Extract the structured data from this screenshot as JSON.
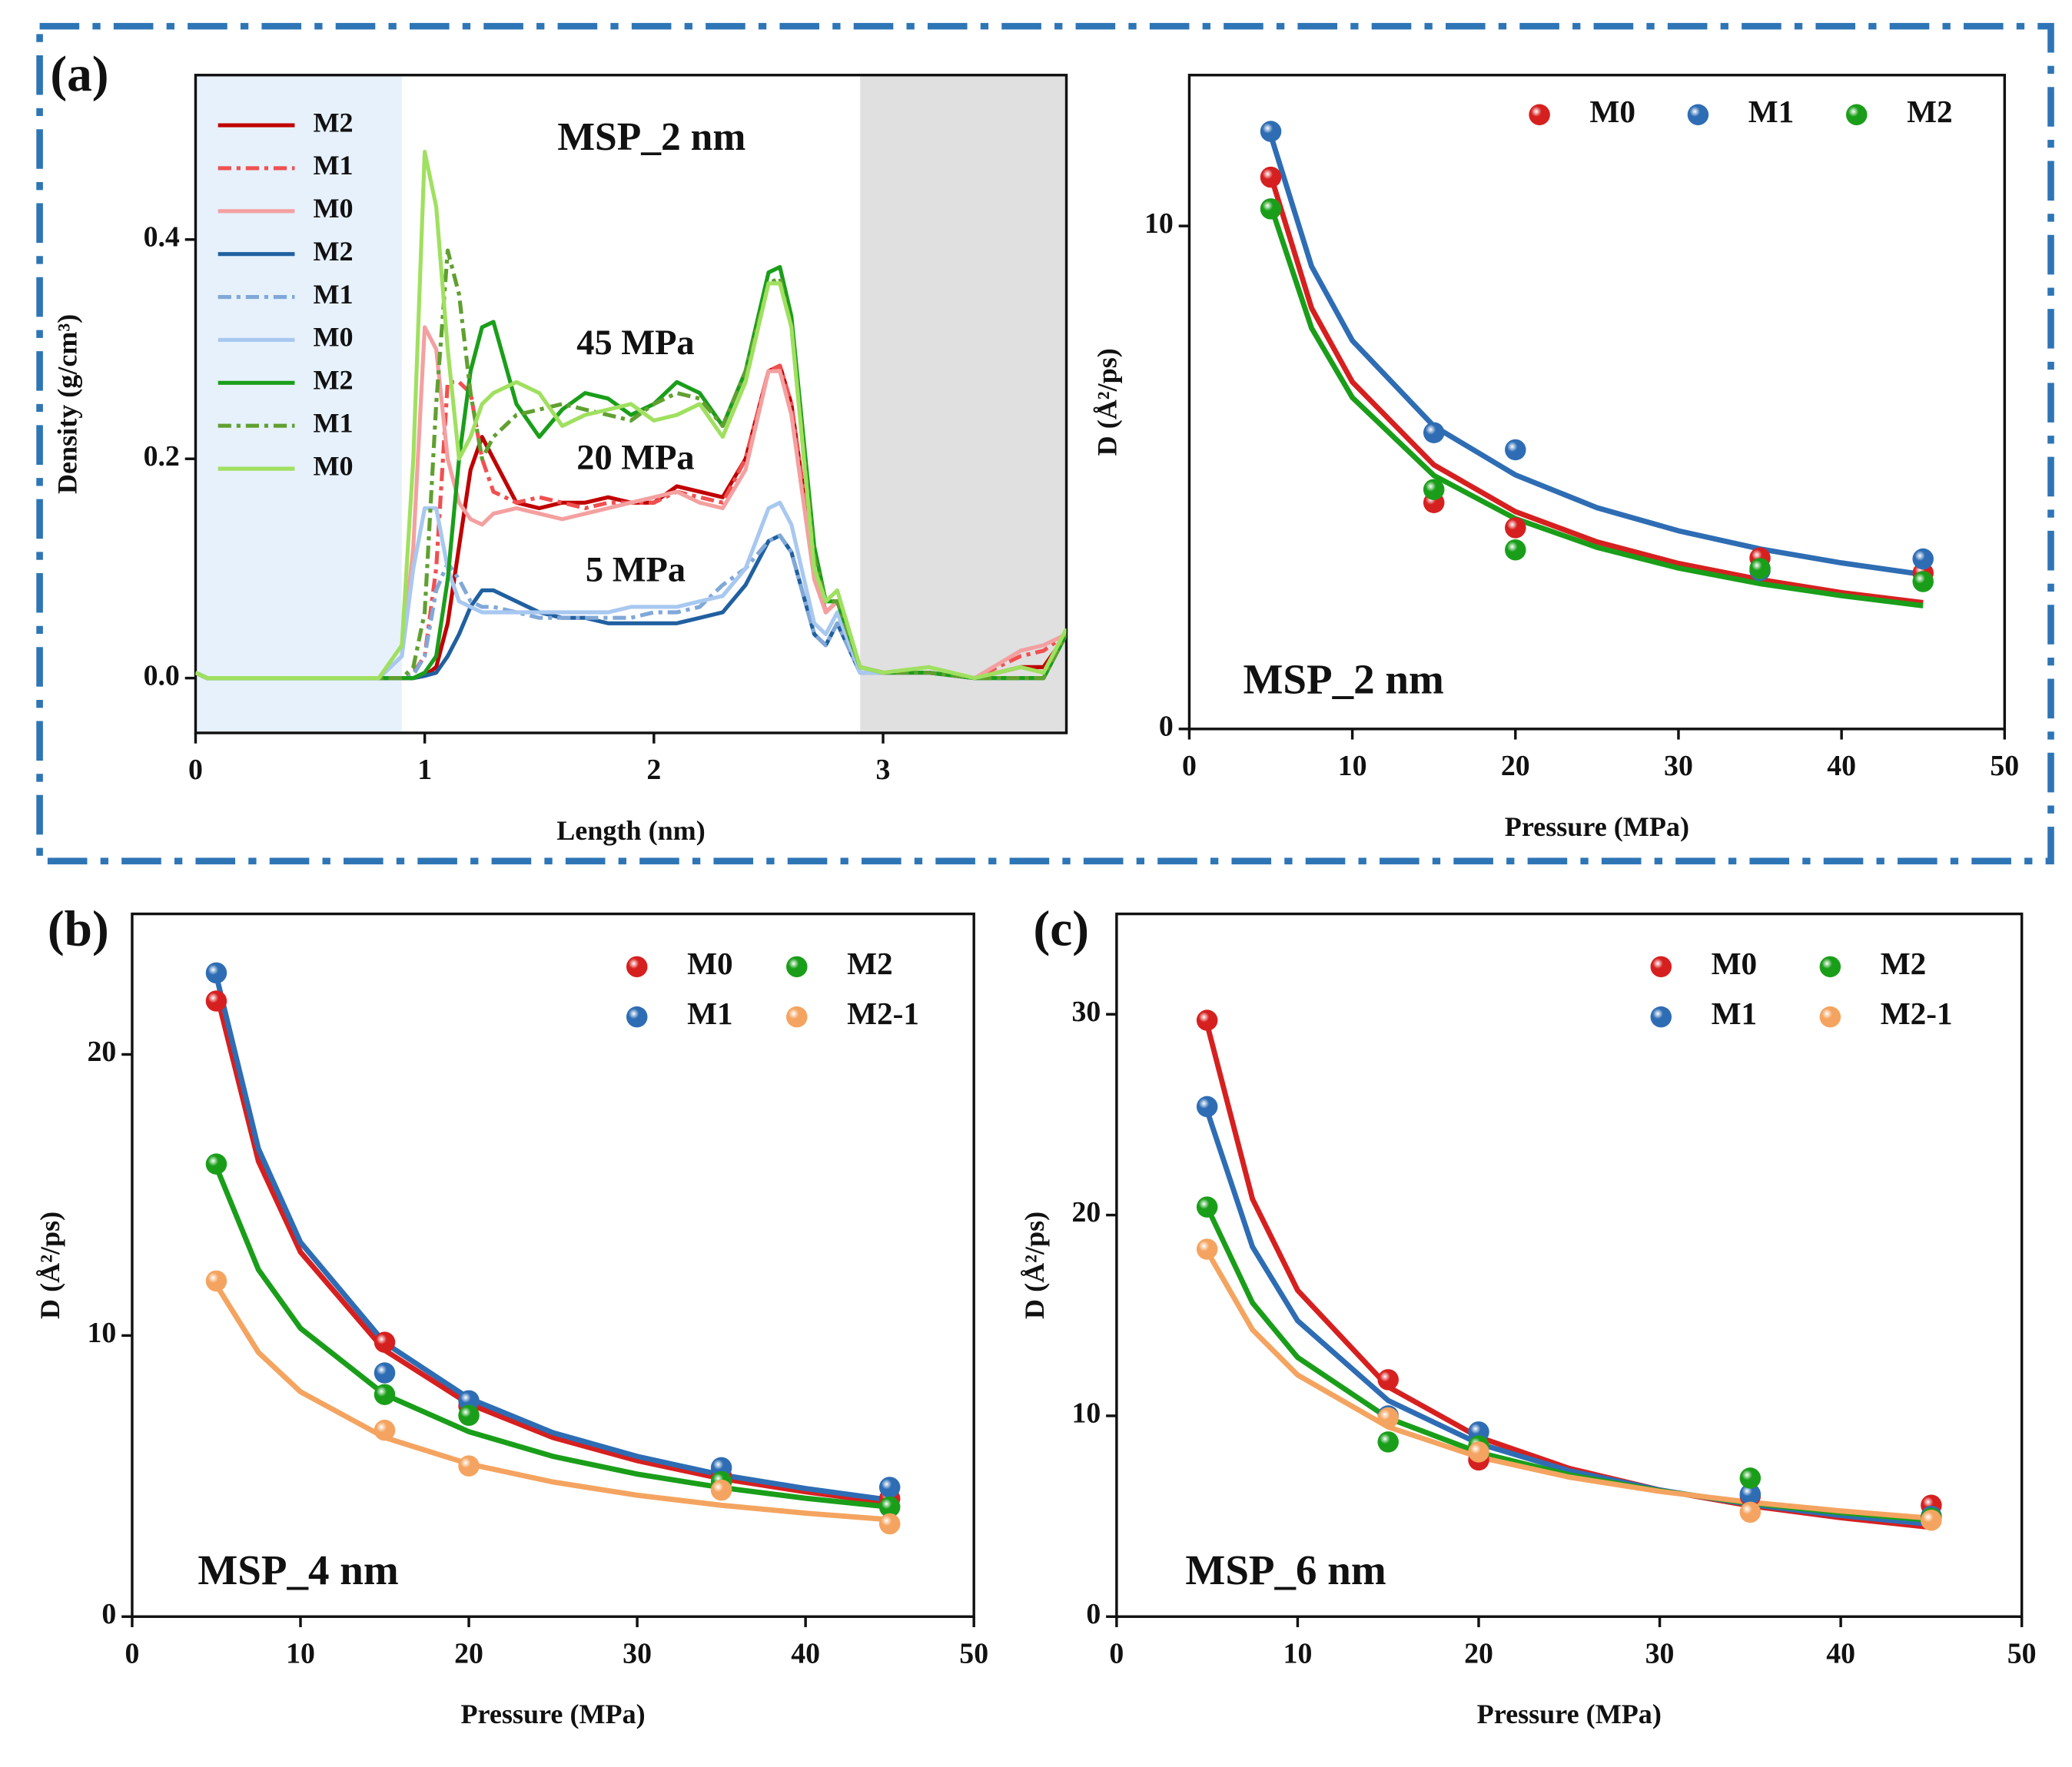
{
  "chart_data": [
    {
      "type": "line",
      "panel_label": "(a)",
      "xlabel": "Length (nm)",
      "ylabel": "Density (g/cm³)",
      "xlim": [
        0,
        3.8
      ],
      "ylim": [
        -0.05,
        0.55
      ],
      "xticks": [
        0,
        1,
        2,
        3
      ],
      "yticks": [
        {
          "value": 0,
          "label": "0.0"
        },
        0.2,
        0.4
      ],
      "regions": [
        {
          "range": [
            0,
            0.9
          ],
          "color": "#e6f1fc"
        },
        {
          "range": [
            2.9,
            3.8
          ],
          "color": "#e0e0e0"
        }
      ],
      "legend": "upper left",
      "annotations": [
        {
          "text": "MSP_2 nm",
          "x": 1.99,
          "y": 0.49,
          "color": "#111111"
        },
        {
          "text": "45 MPa",
          "x": 1.92,
          "y": 0.303,
          "color": "#5a8a30"
        },
        {
          "text": "20 MPa",
          "x": 1.92,
          "y": 0.198,
          "color": "#e02020"
        },
        {
          "text": "5 MPa",
          "x": 1.92,
          "y": 0.096,
          "color": "#2e75b6"
        }
      ],
      "x": [
        0,
        0.05,
        0.8,
        0.9,
        0.95,
        1.0,
        1.05,
        1.1,
        1.15,
        1.2,
        1.25,
        1.3,
        1.4,
        1.5,
        1.6,
        1.7,
        1.8,
        1.9,
        2.0,
        2.1,
        2.2,
        2.3,
        2.4,
        2.5,
        2.55,
        2.6,
        2.7,
        2.75,
        2.8,
        2.9,
        3.0,
        3.2,
        3.4,
        3.6,
        3.7,
        3.8
      ],
      "series": [
        {
          "name": "M2",
          "color": "#c00000",
          "linestyle": "solid",
          "values": [
            0.005,
            0,
            0,
            0,
            0,
            0.002,
            0.01,
            0.05,
            0.12,
            0.19,
            0.22,
            0.2,
            0.16,
            0.155,
            0.16,
            0.16,
            0.165,
            0.16,
            0.16,
            0.175,
            0.17,
            0.165,
            0.2,
            0.28,
            0.285,
            0.25,
            0.1,
            0.06,
            0.07,
            0.01,
            0.005,
            0.005,
            0,
            0.01,
            0.01,
            0.04
          ]
        },
        {
          "name": "M1",
          "color": "#f05050",
          "linestyle": "dashdot",
          "values": [
            0.005,
            0,
            0,
            0,
            0.005,
            0.02,
            0.1,
            0.27,
            0.27,
            0.26,
            0.2,
            0.17,
            0.16,
            0.165,
            0.16,
            0.155,
            0.16,
            0.16,
            0.16,
            0.17,
            0.165,
            0.16,
            0.2,
            0.28,
            0.285,
            0.25,
            0.1,
            0.06,
            0.07,
            0.01,
            0.005,
            0.005,
            0,
            0.02,
            0.025,
            0.04
          ]
        },
        {
          "name": "M0",
          "color": "#f4a0a0",
          "linestyle": "solid",
          "values": [
            0.005,
            0,
            0,
            0.02,
            0.12,
            0.32,
            0.3,
            0.2,
            0.16,
            0.145,
            0.14,
            0.15,
            0.155,
            0.15,
            0.145,
            0.15,
            0.155,
            0.16,
            0.165,
            0.17,
            0.16,
            0.155,
            0.19,
            0.28,
            0.28,
            0.24,
            0.09,
            0.06,
            0.07,
            0.01,
            0.005,
            0.005,
            0,
            0.025,
            0.03,
            0.04
          ]
        },
        {
          "name": "M2",
          "color": "#2060a0",
          "linestyle": "solid",
          "values": [
            0.005,
            0,
            0,
            0,
            0,
            0.002,
            0.005,
            0.02,
            0.04,
            0.065,
            0.08,
            0.08,
            0.07,
            0.06,
            0.055,
            0.055,
            0.05,
            0.05,
            0.05,
            0.05,
            0.055,
            0.06,
            0.085,
            0.125,
            0.13,
            0.115,
            0.04,
            0.03,
            0.05,
            0.005,
            0.005,
            0.005,
            0,
            0,
            0,
            0.04
          ]
        },
        {
          "name": "M1",
          "color": "#80a8d8",
          "linestyle": "dashdot",
          "values": [
            0.005,
            0,
            0,
            0,
            0.003,
            0.02,
            0.08,
            0.105,
            0.09,
            0.07,
            0.065,
            0.065,
            0.06,
            0.055,
            0.055,
            0.055,
            0.055,
            0.055,
            0.06,
            0.06,
            0.065,
            0.085,
            0.1,
            0.125,
            0.13,
            0.115,
            0.04,
            0.03,
            0.05,
            0.005,
            0.005,
            0.005,
            0,
            0,
            0,
            0.04
          ]
        },
        {
          "name": "M0",
          "color": "#a8c8f0",
          "linestyle": "solid",
          "values": [
            0.005,
            0,
            0,
            0.02,
            0.1,
            0.155,
            0.155,
            0.1,
            0.07,
            0.065,
            0.06,
            0.06,
            0.06,
            0.06,
            0.06,
            0.06,
            0.06,
            0.065,
            0.065,
            0.065,
            0.07,
            0.075,
            0.1,
            0.155,
            0.16,
            0.14,
            0.05,
            0.04,
            0.06,
            0.005,
            0.005,
            0.005,
            0,
            0,
            0,
            0.04
          ]
        },
        {
          "name": "M2",
          "color": "#1a9e1a",
          "linestyle": "solid",
          "values": [
            0.005,
            0,
            0,
            0,
            0,
            0.005,
            0.02,
            0.09,
            0.2,
            0.28,
            0.32,
            0.325,
            0.25,
            0.22,
            0.245,
            0.26,
            0.255,
            0.24,
            0.25,
            0.27,
            0.26,
            0.23,
            0.28,
            0.37,
            0.375,
            0.33,
            0.12,
            0.07,
            0.07,
            0.01,
            0.005,
            0.005,
            0,
            0,
            0,
            0.04
          ]
        },
        {
          "name": "M1",
          "color": "#60a030",
          "linestyle": "dashdot",
          "values": [
            0.005,
            0,
            0,
            0,
            0.01,
            0.06,
            0.25,
            0.39,
            0.35,
            0.26,
            0.2,
            0.22,
            0.24,
            0.245,
            0.25,
            0.245,
            0.24,
            0.235,
            0.25,
            0.26,
            0.255,
            0.23,
            0.28,
            0.36,
            0.365,
            0.32,
            0.11,
            0.07,
            0.07,
            0.01,
            0.005,
            0.005,
            0,
            0,
            0,
            0.04
          ]
        },
        {
          "name": "M0",
          "color": "#a0e060",
          "linestyle": "solid",
          "values": [
            0.005,
            0,
            0,
            0.03,
            0.2,
            0.48,
            0.43,
            0.3,
            0.2,
            0.22,
            0.25,
            0.26,
            0.27,
            0.26,
            0.23,
            0.24,
            0.245,
            0.25,
            0.235,
            0.24,
            0.25,
            0.22,
            0.27,
            0.36,
            0.36,
            0.32,
            0.1,
            0.07,
            0.08,
            0.01,
            0.005,
            0.01,
            0,
            0.01,
            0.005,
            0.045
          ]
        }
      ]
    },
    {
      "type": "scatter",
      "xlabel": "Pressure (MPa)",
      "ylabel": "D (Å²/ps)",
      "xlim": [
        0,
        50
      ],
      "ylim": [
        0,
        13
      ],
      "xticks": [
        0,
        10,
        20,
        30,
        40,
        50
      ],
      "yticks": [
        0,
        10
      ],
      "legend": "upper right",
      "legend_columns": 3,
      "annotations": [
        {
          "text": "MSP_2 nm",
          "x": 3.3,
          "y": 0.9,
          "color": "#111111"
        }
      ],
      "x": [
        5,
        15,
        20,
        35,
        45
      ],
      "fit_x": [
        5,
        7.5,
        10,
        15,
        20,
        25,
        30,
        35,
        40,
        45
      ],
      "series": [
        {
          "name": "M0",
          "color": "#d62020",
          "values": [
            10.97,
            4.5,
            4.0,
            3.4,
            3.1
          ],
          "fit": [
            11.0,
            8.37,
            6.9,
            5.25,
            4.32,
            3.72,
            3.29,
            2.97,
            2.71,
            2.51
          ]
        },
        {
          "name": "M1",
          "color": "#2e6db4",
          "values": [
            11.88,
            5.89,
            5.55,
            3.15,
            3.38
          ],
          "fit": [
            11.8,
            9.2,
            7.72,
            6.02,
            5.05,
            4.4,
            3.94,
            3.58,
            3.3,
            3.07
          ]
        },
        {
          "name": "M2",
          "color": "#1a9e1a",
          "values": [
            10.34,
            4.76,
            3.56,
            3.19,
            2.93
          ],
          "fit": [
            10.4,
            7.97,
            6.59,
            5.04,
            4.18,
            3.61,
            3.2,
            2.89,
            2.65,
            2.45
          ]
        }
      ]
    },
    {
      "type": "scatter",
      "panel_label": "(b)",
      "xlabel": "Pressure (MPa)",
      "ylabel": "D (Å²/ps)",
      "xlim": [
        0,
        50
      ],
      "ylim": [
        0,
        25
      ],
      "xticks": [
        0,
        10,
        20,
        30,
        40,
        50
      ],
      "yticks": [
        0,
        10,
        20
      ],
      "legend": "upper right",
      "legend_columns": 2,
      "annotations": [
        {
          "text": "MSP_4 nm",
          "x": 3.9,
          "y": 1.5,
          "color": "#111111"
        }
      ],
      "x": [
        5,
        15,
        20,
        35,
        45
      ],
      "fit_x": [
        5,
        7.5,
        10,
        15,
        20,
        25,
        30,
        35,
        40,
        45
      ],
      "series": [
        {
          "name": "M0",
          "color": "#d62020",
          "values": [
            21.9,
            9.76,
            7.5,
            5.0,
            4.2
          ],
          "fit": [
            22.2,
            16.2,
            12.97,
            9.48,
            7.57,
            6.37,
            5.55,
            4.91,
            4.44,
            4.04
          ]
        },
        {
          "name": "M1",
          "color": "#2e6db4",
          "values": [
            22.9,
            8.67,
            7.68,
            5.3,
            4.6
          ],
          "fit": [
            22.8,
            16.64,
            13.32,
            9.74,
            7.77,
            6.54,
            5.7,
            5.04,
            4.56,
            4.15
          ]
        },
        {
          "name": "M2",
          "color": "#1a9e1a",
          "values": [
            16.1,
            7.9,
            7.16,
            4.8,
            3.9
          ],
          "fit": [
            16.0,
            12.34,
            10.26,
            7.9,
            6.58,
            5.7,
            5.07,
            4.59,
            4.21,
            3.9
          ]
        },
        {
          "name": "M2-1",
          "color": "#f4a460",
          "values": [
            11.94,
            6.63,
            5.36,
            4.5,
            3.3
          ],
          "fit": [
            11.8,
            9.4,
            8.0,
            6.37,
            5.43,
            4.79,
            4.32,
            3.96,
            3.68,
            3.45
          ]
        }
      ]
    },
    {
      "type": "scatter",
      "panel_label": "(c)",
      "xlabel": "Pressure (MPa)",
      "ylabel": "D (Å²/ps)",
      "xlim": [
        0,
        50
      ],
      "ylim": [
        0,
        35
      ],
      "xticks": [
        0,
        10,
        20,
        30,
        40,
        50
      ],
      "yticks": [
        0,
        10,
        20,
        30
      ],
      "legend": "upper right",
      "legend_columns": 2,
      "annotations": [
        {
          "text": "MSP_6 nm",
          "x": 3.8,
          "y": 2.1,
          "color": "#111111"
        }
      ],
      "x": [
        5,
        15,
        20,
        35,
        45
      ],
      "fit_x": [
        5,
        7.5,
        10,
        15,
        20,
        25,
        30,
        35,
        40,
        45
      ],
      "series": [
        {
          "name": "M0",
          "color": "#d62020",
          "values": [
            29.7,
            11.8,
            7.8,
            6.0,
            5.55
          ],
          "fit": [
            29.5,
            20.8,
            16.25,
            11.45,
            8.94,
            7.38,
            6.31,
            5.52,
            4.93,
            4.45
          ]
        },
        {
          "name": "M1",
          "color": "#2e6db4",
          "values": [
            25.4,
            10.0,
            9.2,
            6.1,
            5.0
          ],
          "fit": [
            25.2,
            18.42,
            14.74,
            10.76,
            8.62,
            7.26,
            6.3,
            5.59,
            5.04,
            4.6
          ]
        },
        {
          "name": "M2",
          "color": "#1a9e1a",
          "values": [
            20.4,
            8.7,
            8.5,
            6.9,
            4.9
          ],
          "fit": [
            20.4,
            15.63,
            12.91,
            9.89,
            8.18,
            7.06,
            6.26,
            5.65,
            5.18,
            4.8
          ]
        },
        {
          "name": "M2-1",
          "color": "#f4a460",
          "values": [
            18.3,
            9.9,
            8.2,
            5.2,
            4.8
          ],
          "fit": [
            18.2,
            14.29,
            12.03,
            9.45,
            7.95,
            6.95,
            6.24,
            5.7,
            5.26,
            4.9
          ]
        }
      ]
    }
  ]
}
